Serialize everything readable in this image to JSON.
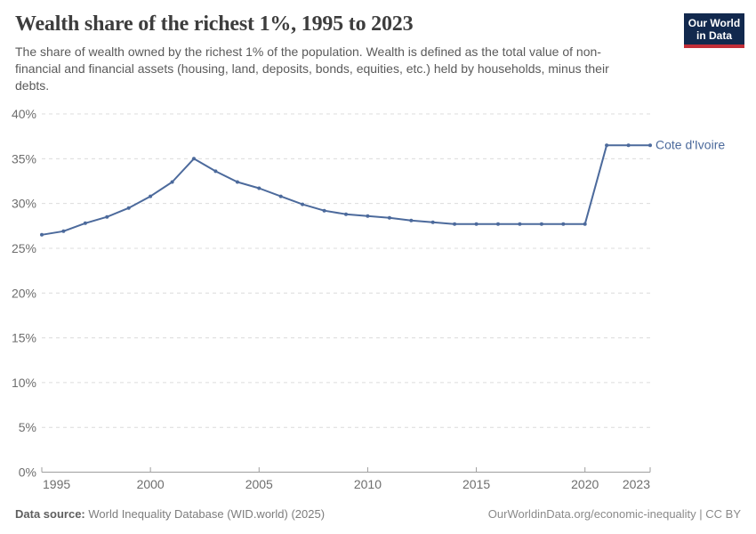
{
  "header": {
    "title": "Wealth share of the richest 1%, 1995 to 2023",
    "subtitle": "The share of wealth owned by the richest 1% of the population. Wealth is defined as the total value of non-financial and financial assets (housing, land, deposits, bonds, equities, etc.) held by households, minus their debts.",
    "logo": {
      "line1": "Our World",
      "line2": "in Data"
    }
  },
  "chart_data": {
    "type": "line",
    "title": "Wealth share of the richest 1%, 1995 to 2023",
    "xlabel": "",
    "ylabel": "",
    "x": [
      1995,
      1996,
      1997,
      1998,
      1999,
      2000,
      2001,
      2002,
      2003,
      2004,
      2005,
      2006,
      2007,
      2008,
      2009,
      2010,
      2011,
      2012,
      2013,
      2014,
      2015,
      2016,
      2017,
      2018,
      2019,
      2020,
      2021,
      2022,
      2023
    ],
    "series": [
      {
        "name": "Cote d'Ivoire",
        "color": "#4c6a9c",
        "values": [
          26.5,
          26.9,
          27.8,
          28.5,
          29.5,
          30.8,
          32.4,
          35.0,
          33.6,
          32.4,
          31.7,
          30.8,
          29.9,
          29.2,
          28.8,
          28.6,
          28.4,
          28.1,
          27.9,
          27.7,
          27.7,
          27.7,
          27.7,
          27.7,
          27.7,
          27.7,
          36.5,
          36.5,
          36.5
        ]
      }
    ],
    "xlim": [
      1995,
      2023
    ],
    "ylim": [
      0,
      40
    ],
    "xticks": [
      1995,
      2000,
      2005,
      2010,
      2015,
      2020,
      2023
    ],
    "yticks": [
      0,
      5,
      10,
      15,
      20,
      25,
      30,
      35,
      40
    ],
    "ytick_suffix": "%",
    "grid": true,
    "gridline_style": "dashed",
    "legend_position": "end-of-line-label"
  },
  "footer": {
    "source_label": "Data source:",
    "source_text": "World Inequality Database (WID.world) (2025)",
    "link_text": "OurWorldinData.org/economic-inequality | CC BY"
  },
  "colors": {
    "line": "#4c6a9c",
    "logo_navy": "#12294e",
    "logo_red": "#c22e38",
    "gridline": "#dcdcdc",
    "axis": "#9e9e9e",
    "tick_label": "#6e6e6e",
    "title_text": "#3d3d3d",
    "subtitle_text": "#5a5a5a"
  }
}
